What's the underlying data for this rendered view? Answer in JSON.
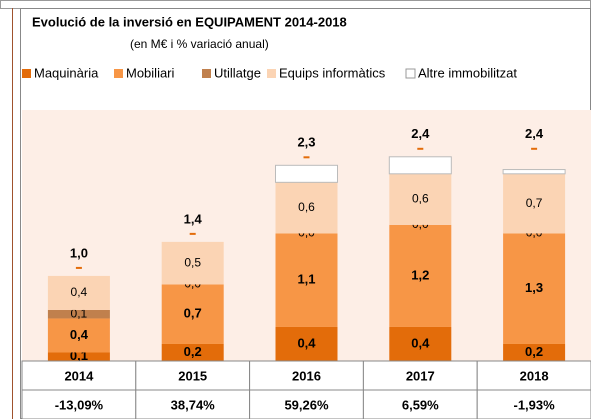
{
  "chart_data": {
    "type": "stacked-bar",
    "title": "Evolució de la inversió en EQUIPAMENT   2014-2018",
    "subtitle": "(en M€ i % variació anual)",
    "categories": [
      "2014",
      "2015",
      "2016",
      "2017",
      "2018"
    ],
    "ylim": [
      0,
      2.95
    ],
    "series": [
      {
        "name": "Maquinària",
        "color": "#e36c0a",
        "values": [
          0.1,
          0.2,
          0.4,
          0.4,
          0.2
        ],
        "value_labels": [
          "0,1",
          "0,2",
          "0,4",
          "0,4",
          "0,2"
        ],
        "bold": true
      },
      {
        "name": "Mobiliari",
        "color": "#f79646",
        "values": [
          0.4,
          0.7,
          1.1,
          1.2,
          1.3
        ],
        "value_labels": [
          "0,4",
          "0,7",
          "1,1",
          "1,2",
          "1,3"
        ],
        "bold": true
      },
      {
        "name": "Utillatge",
        "color": "#c0804d",
        "values": [
          0.1,
          0.0,
          0.0,
          0.0,
          0.0
        ],
        "value_labels": [
          "0,1",
          "0,0",
          "0,0",
          "0,0",
          "0,0"
        ],
        "bold": false
      },
      {
        "name": "Equips informàtics",
        "color": "#fbd4b4",
        "values": [
          0.4,
          0.5,
          0.6,
          0.6,
          0.7
        ],
        "value_labels": [
          "0,4",
          "0,5",
          "0,6",
          "0,6",
          "0,7"
        ],
        "bold": false
      },
      {
        "name": "Altre immobilitzat",
        "color": "#ffffff",
        "values": [
          0.0,
          0.0,
          0.2,
          0.2,
          0.05
        ]
      }
    ],
    "totals": [
      1.0,
      1.4,
      2.3,
      2.4,
      2.4
    ],
    "total_labels": [
      "1,0",
      "1,4",
      "2,3",
      "2,4",
      "2,4"
    ],
    "total_color": "#e36c0a",
    "variation": [
      -13.09,
      38.74,
      59.26,
      6.59,
      -1.93
    ],
    "variation_labels": [
      "-13,09%",
      "38,74%",
      "59,26%",
      "6,59%",
      "-1,93%"
    ]
  }
}
